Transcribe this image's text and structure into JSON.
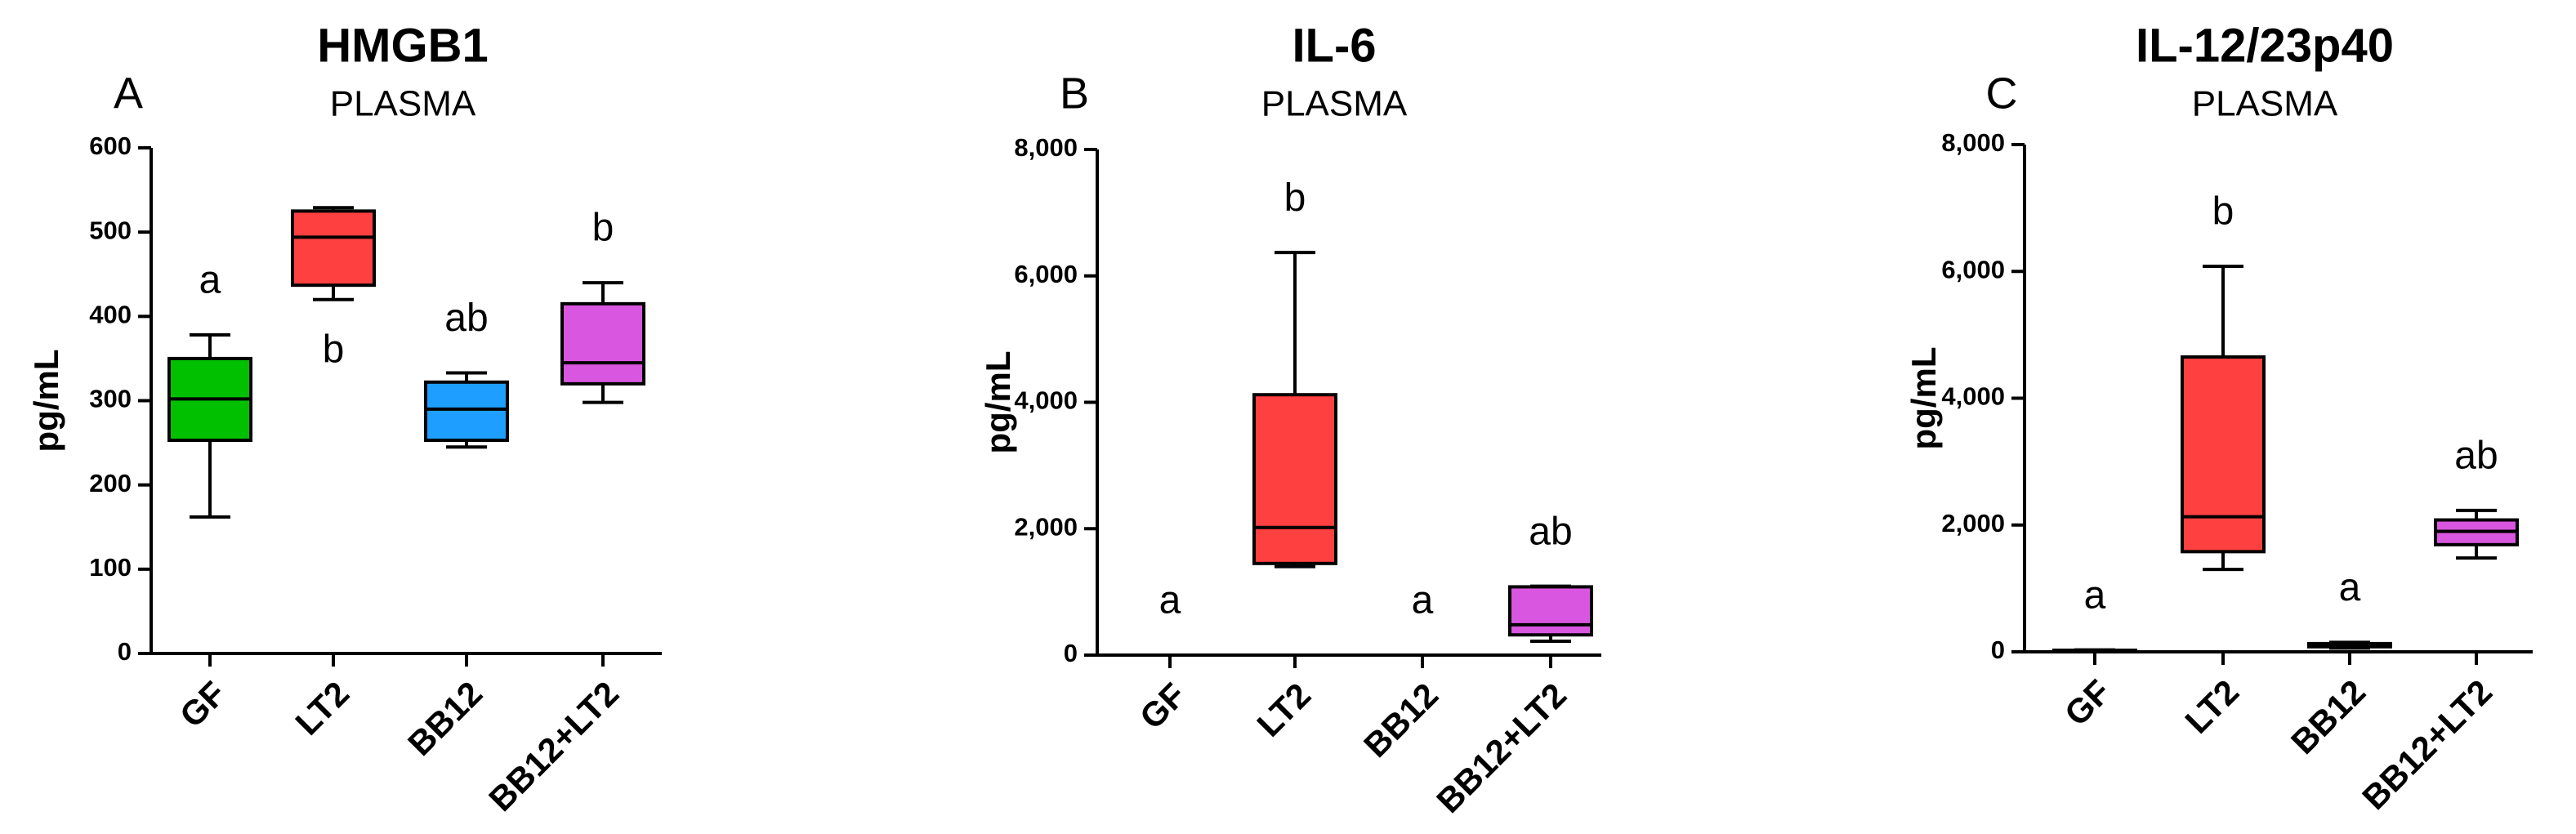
{
  "chart_data": [
    {
      "type": "box",
      "panel": "A",
      "title": "HMGB1",
      "subtitle": "PLASMA",
      "y_label": "pg/mL",
      "categories": [
        "GF",
        "LT2",
        "BB12",
        "BB12+LT2"
      ],
      "colors": [
        "#00c000",
        "#ff4040",
        "#1e9fff",
        "#d957e0"
      ],
      "min": [
        162,
        420,
        245,
        298
      ],
      "q1": [
        253,
        437,
        253,
        320
      ],
      "median": [
        302,
        494,
        290,
        345
      ],
      "q3": [
        350,
        525,
        322,
        415
      ],
      "max": [
        378,
        529,
        333,
        440
      ],
      "letters": [
        "a",
        "b",
        "ab",
        "b"
      ],
      "ylim": [
        0,
        600
      ],
      "yticks": [
        0,
        100,
        200,
        300,
        400,
        500,
        600
      ]
    },
    {
      "type": "box",
      "panel": "B",
      "title": "IL-6",
      "subtitle": "PLASMA",
      "y_label": "pg/mL",
      "categories": [
        "GF",
        "LT2",
        "BB12",
        "BB12+LT2"
      ],
      "colors": [
        "#00c000",
        "#ff4040",
        "#1e9fff",
        "#d957e0"
      ],
      "min": [
        0,
        1400,
        0,
        220
      ],
      "q1": [
        0,
        1450,
        0,
        320
      ],
      "median": [
        0,
        2020,
        0,
        480
      ],
      "q3": [
        0,
        4120,
        0,
        1080
      ],
      "max": [
        0,
        6370,
        0,
        1090
      ],
      "letters": [
        "a",
        "b",
        "a",
        "ab"
      ],
      "ylim": [
        0,
        8000
      ],
      "yticks": [
        0,
        {
          "value": 2000,
          "label": "2,000"
        },
        {
          "value": 4000,
          "label": "4,000"
        },
        {
          "value": 6000,
          "label": "6,000"
        },
        {
          "value": 8000,
          "label": "8,000"
        }
      ]
    },
    {
      "type": "box",
      "panel": "C",
      "title": "IL-12/23p40",
      "subtitle": "PLASMA",
      "y_label": "pg/mL",
      "categories": [
        "GF",
        "LT2",
        "BB12",
        "BB12+LT2"
      ],
      "colors": [
        "#00c000",
        "#ff4040",
        "#1e9fff",
        "#d957e0"
      ],
      "min": [
        10,
        1300,
        60,
        1480
      ],
      "q1": [
        15,
        1580,
        80,
        1690
      ],
      "median": [
        20,
        2130,
        100,
        1900
      ],
      "q3": [
        25,
        4650,
        130,
        2080
      ],
      "max": [
        30,
        6080,
        150,
        2230
      ],
      "letters": [
        "a",
        "b",
        "a",
        "ab"
      ],
      "ylim": [
        0,
        8000
      ],
      "yticks": [
        0,
        {
          "value": 2000,
          "label": "2,000"
        },
        {
          "value": 4000,
          "label": "4,000"
        },
        {
          "value": 6000,
          "label": "6,000"
        },
        {
          "value": 8000,
          "label": "8,000"
        }
      ]
    }
  ]
}
